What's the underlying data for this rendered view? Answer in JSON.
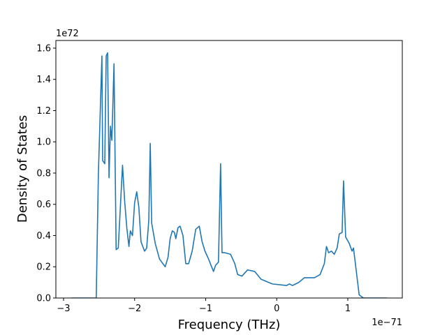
{
  "chart_data": {
    "type": "line",
    "x_label": "Frequency (THz)",
    "y_label": "Density of States",
    "x_offset_label": "1e−71",
    "y_offset_label": "1e72",
    "xlim": [
      -3.108,
      1.767
    ],
    "ylim": [
      0,
      1.649
    ],
    "xticks": [
      {
        "value": -3,
        "label": "−3"
      },
      {
        "value": -2,
        "label": "−2"
      },
      {
        "value": -1,
        "label": "−1"
      },
      0,
      1
    ],
    "yticks": [
      {
        "value": 0,
        "label": "0.0"
      },
      0.2,
      0.4,
      0.6,
      0.8,
      {
        "value": 1,
        "label": "1.0"
      },
      1.2,
      1.4,
      1.6
    ],
    "grid": false,
    "series": [
      {
        "color": "#1f77b4",
        "x": [
          -2.89,
          -2.54,
          -2.51,
          -2.48,
          -2.46,
          -2.45,
          -2.42,
          -2.4,
          -2.38,
          -2.36,
          -2.34,
          -2.32,
          -2.29,
          -2.26,
          -2.23,
          -2.21,
          -2.17,
          -2.14,
          -2.11,
          -2.08,
          -2.06,
          -2.03,
          -2.0,
          -1.97,
          -1.94,
          -1.91,
          -1.86,
          -1.83,
          -1.8,
          -1.78,
          -1.76,
          -1.71,
          -1.65,
          -1.57,
          -1.53,
          -1.5,
          -1.47,
          -1.44,
          -1.42,
          -1.39,
          -1.36,
          -1.32,
          -1.28,
          -1.24,
          -1.19,
          -1.14,
          -1.09,
          -1.05,
          -1.01,
          -0.96,
          -0.89,
          -0.86,
          -0.82,
          -0.79,
          -0.77,
          -0.73,
          -0.65,
          -0.59,
          -0.55,
          -0.49,
          -0.41,
          -0.31,
          -0.22,
          -0.06,
          0.14,
          0.18,
          0.22,
          0.31,
          0.39,
          0.53,
          0.61,
          0.67,
          0.7,
          0.73,
          0.77,
          0.81,
          0.85,
          0.88,
          0.92,
          0.94,
          0.97,
          1.02,
          1.06,
          1.08,
          1.12,
          1.16,
          1.22,
          1.55
        ],
        "values": [
          0,
          0,
          0.79,
          1.25,
          1.55,
          0.88,
          0.86,
          1.55,
          1.57,
          0.77,
          1.1,
          1.01,
          1.5,
          0.31,
          0.32,
          0.5,
          0.85,
          0.62,
          0.45,
          0.33,
          0.43,
          0.4,
          0.61,
          0.68,
          0.58,
          0.36,
          0.3,
          0.32,
          0.5,
          0.99,
          0.48,
          0.35,
          0.25,
          0.2,
          0.26,
          0.38,
          0.43,
          0.42,
          0.38,
          0.45,
          0.46,
          0.4,
          0.22,
          0.22,
          0.3,
          0.44,
          0.46,
          0.36,
          0.3,
          0.25,
          0.17,
          0.21,
          0.23,
          0.86,
          0.29,
          0.29,
          0.28,
          0.22,
          0.15,
          0.14,
          0.18,
          0.17,
          0.12,
          0.09,
          0.08,
          0.09,
          0.08,
          0.1,
          0.13,
          0.13,
          0.15,
          0.22,
          0.33,
          0.29,
          0.3,
          0.28,
          0.32,
          0.41,
          0.42,
          0.75,
          0.39,
          0.35,
          0.3,
          0.32,
          0.17,
          0.02,
          0,
          0
        ]
      }
    ]
  }
}
